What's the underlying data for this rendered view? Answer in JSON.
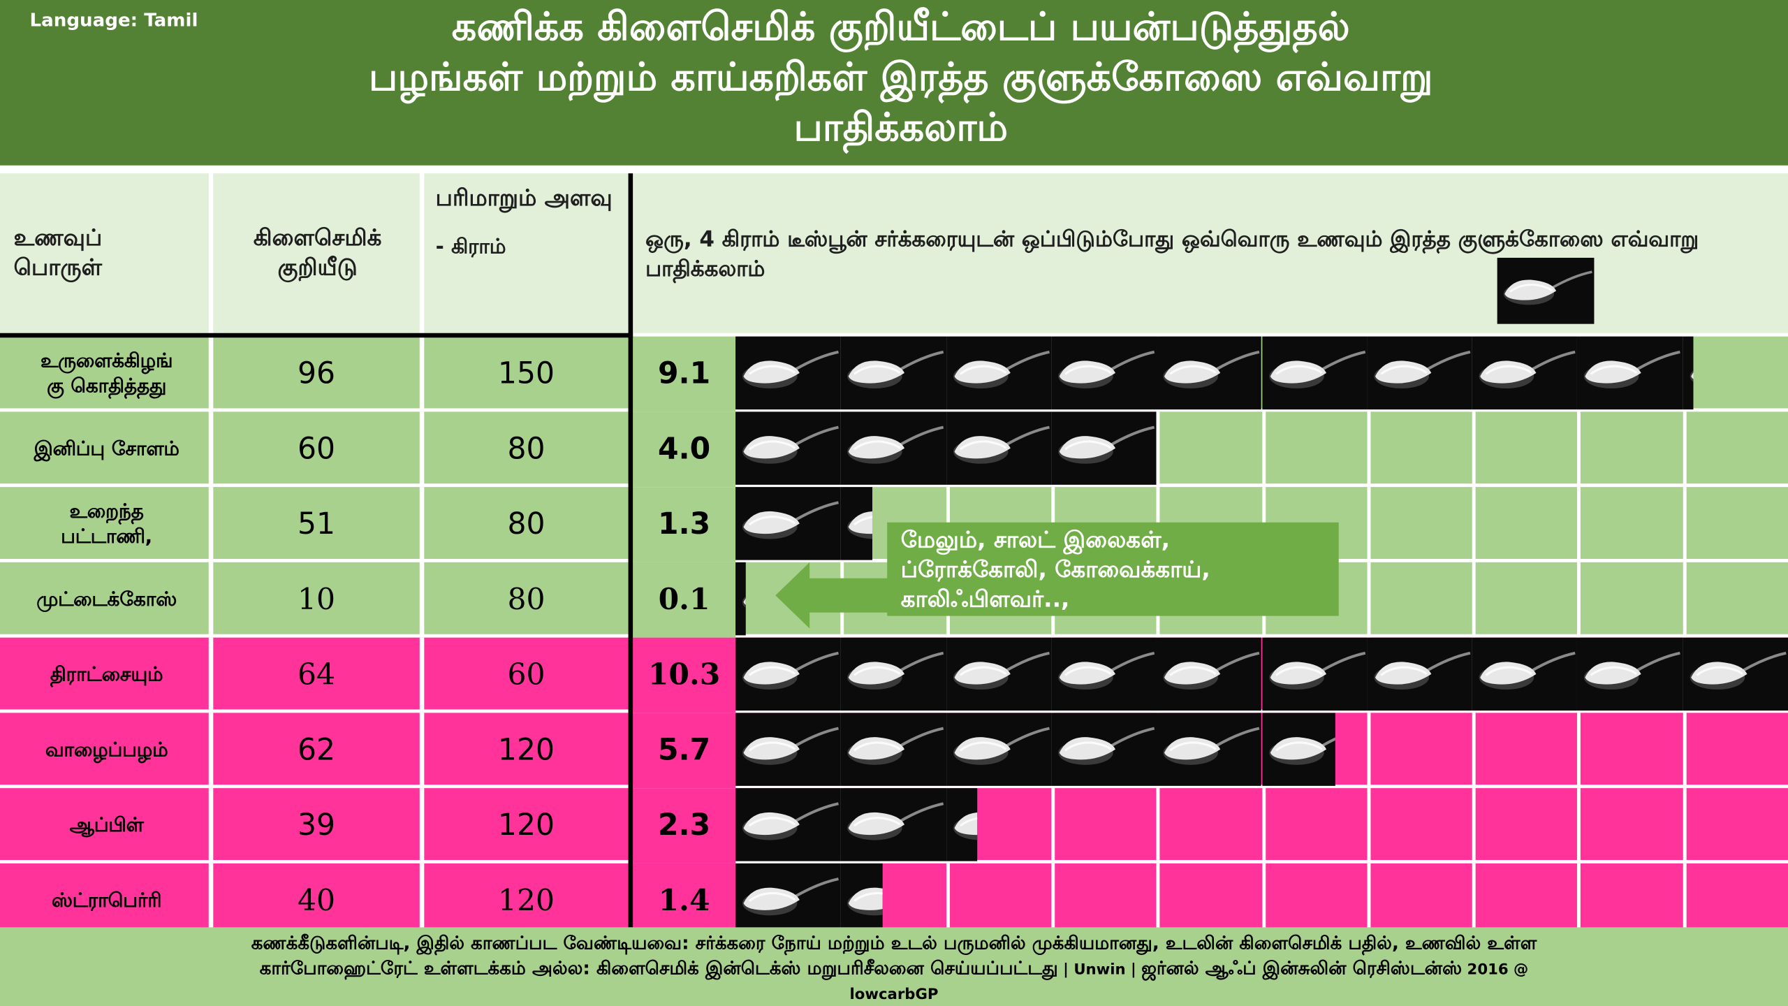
{
  "header": {
    "language": "Language: Tamil",
    "title_lines": [
      "கணிக்க கிளைசெமிக் குறியீட்டைப் பயன்படுத்துதல்",
      "பழங்கள் மற்றும் காய்கறிகள் இரத்த குளுக்கோஸை எவ்வாறு",
      "பாதிக்கலாம்"
    ]
  },
  "columns": {
    "food": "உணவுப் பொருள்",
    "gi": "கிளைசெமிக் குறியீடு",
    "serving_top": "பரிமாறும் அளவு",
    "serving_unit": "- கிராம்",
    "comparison": "ஒரு, 4 கிராம் டீஸ்பூன் சர்க்கரையுடன் ஒப்பிடும்போது ஒவ்வொரு உணவும் இரத்த குளுக்கோஸை எவ்வாறு பாதிக்கலாம்",
    "spoon_icon": "sugar-teaspoon-icon"
  },
  "rows": [
    {
      "food_lines": [
        "உருளைக்கிழங்",
        "கு கொதித்தது"
      ],
      "gi": "96",
      "serving": "150",
      "teaspoons": "9.1",
      "tsp_value": 9.1,
      "group": "vegetable"
    },
    {
      "food_lines": [
        "இனிப்பு சோளம்"
      ],
      "gi": "60",
      "serving": "80",
      "teaspoons": "4.0",
      "tsp_value": 4.0,
      "group": "vegetable"
    },
    {
      "food_lines": [
        "உறைந்த",
        "பட்டாணி,"
      ],
      "gi": "51",
      "serving": "80",
      "teaspoons": "1.3",
      "tsp_value": 1.3,
      "group": "vegetable"
    },
    {
      "food_lines": [
        "முட்டைக்கோஸ்"
      ],
      "gi": "10",
      "serving": "80",
      "teaspoons": "0.1",
      "tsp_value": 0.1,
      "group": "vegetable"
    },
    {
      "food_lines": [
        "திராட்சையும்"
      ],
      "gi": "64",
      "serving": "60",
      "teaspoons": "10.3",
      "tsp_value": 10.3,
      "group": "fruit"
    },
    {
      "food_lines": [
        "வாழைப்பழம்"
      ],
      "gi": "62",
      "serving": "120",
      "teaspoons": "5.7",
      "tsp_value": 5.7,
      "group": "fruit"
    },
    {
      "food_lines": [
        "ஆப்பிள்"
      ],
      "gi": "39",
      "serving": "120",
      "teaspoons": "2.3",
      "tsp_value": 2.3,
      "group": "fruit"
    },
    {
      "food_lines": [
        "ஸ்ட்ராபெர்ரி"
      ],
      "gi": "40",
      "serving": "120",
      "teaspoons": "1.4",
      "tsp_value": 1.4,
      "group": "fruit"
    }
  ],
  "callout": {
    "lines": [
      "மேலும், சாலட் இலைகள்,",
      "ப்ரோக்கோலி, கோவைக்காய்,",
      "காலிஃபிளவர்..,"
    ]
  },
  "footer": {
    "line1": "கணக்கீடுகளின்படி, இதில் காணப்பட வேண்டியவை: சர்க்கரை நோய் மற்றும் உடல் பருமனில் முக்கியமானது, உடலின் கிளைசெமிக் பதில், உணவில் உள்ள",
    "line2_main": "கார்போஹைட்ரேட் உள்ளடக்கம் அல்ல: கிளைசெமிக் இன்டெக்ஸ் மறுபரிசீலனை செய்யப்பட்டது",
    "line2_small_a": " | Unwin | ",
    "line2_main_b": "ஜர்னல் ஆஃப் இன்சுலின் ரெசிஸ்டன்ஸ்",
    "line2_small_b": " 2016 @",
    "line3": "lowcarbGP"
  },
  "colors": {
    "header_green": "#548235",
    "header_band": "#e2efd9",
    "vegetable_green": "#a9d18e",
    "fruit_pink": "#ff3399",
    "callout_green": "#70ad47"
  }
}
